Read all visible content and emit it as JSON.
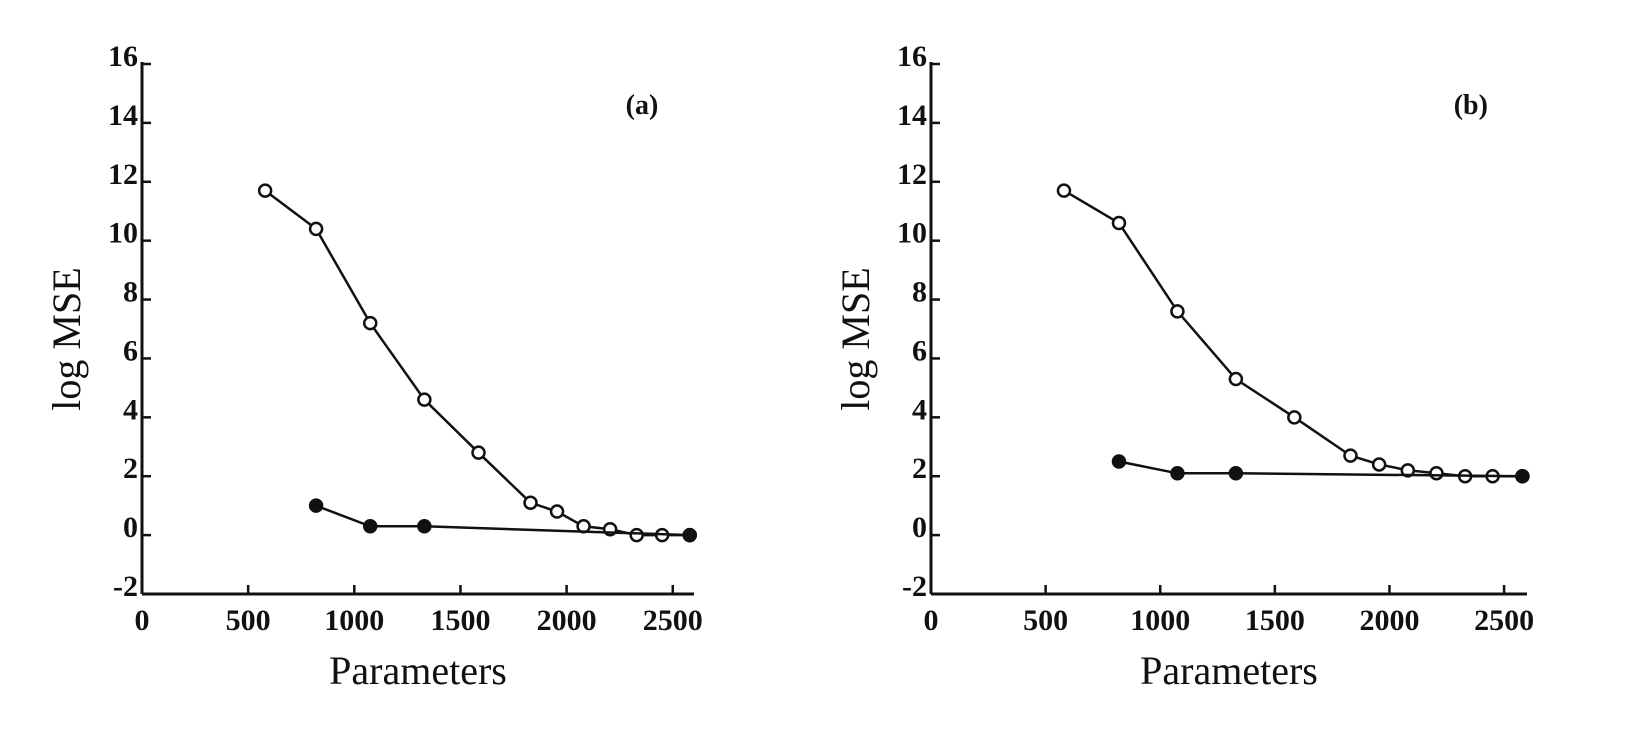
{
  "chart_data": [
    {
      "type": "line",
      "panel_label": "(a)",
      "xlabel": "Parameters",
      "ylabel": "log MSE",
      "xlim": [
        0,
        2600
      ],
      "ylim": [
        -2,
        16
      ],
      "xticks": [
        0,
        500,
        1000,
        1500,
        2000,
        2500
      ],
      "yticks": [
        -2,
        0,
        2,
        4,
        6,
        8,
        10,
        12,
        14,
        16
      ],
      "grid": false,
      "series": [
        {
          "marker": "open-circle",
          "x": [
            580,
            820,
            1075,
            1330,
            1585,
            1830,
            1955,
            2080,
            2205,
            2330,
            2450,
            2580
          ],
          "y": [
            11.7,
            10.4,
            7.2,
            4.6,
            2.8,
            1.1,
            0.8,
            0.3,
            0.2,
            0.0,
            0.0,
            0.0
          ]
        },
        {
          "marker": "filled-circle",
          "x": [
            820,
            1075,
            1330,
            2580
          ],
          "y": [
            1.0,
            0.3,
            0.3,
            0.0
          ]
        }
      ]
    },
    {
      "type": "line",
      "panel_label": "(b)",
      "xlabel": "Parameters",
      "ylabel": "log MSE",
      "xlim": [
        0,
        2600
      ],
      "ylim": [
        -2,
        16
      ],
      "xticks": [
        0,
        500,
        1000,
        1500,
        2000,
        2500
      ],
      "yticks": [
        -2,
        0,
        2,
        4,
        6,
        8,
        10,
        12,
        14,
        16
      ],
      "grid": false,
      "series": [
        {
          "marker": "open-circle",
          "x": [
            580,
            820,
            1075,
            1330,
            1585,
            1830,
            1955,
            2080,
            2205,
            2330,
            2450,
            2580
          ],
          "y": [
            11.7,
            10.6,
            7.6,
            5.3,
            4.0,
            2.7,
            2.4,
            2.2,
            2.1,
            2.0,
            2.0,
            2.0
          ]
        },
        {
          "marker": "filled-circle",
          "x": [
            820,
            1075,
            1330,
            2580
          ],
          "y": [
            2.5,
            2.1,
            2.1,
            2.0
          ]
        }
      ]
    }
  ]
}
